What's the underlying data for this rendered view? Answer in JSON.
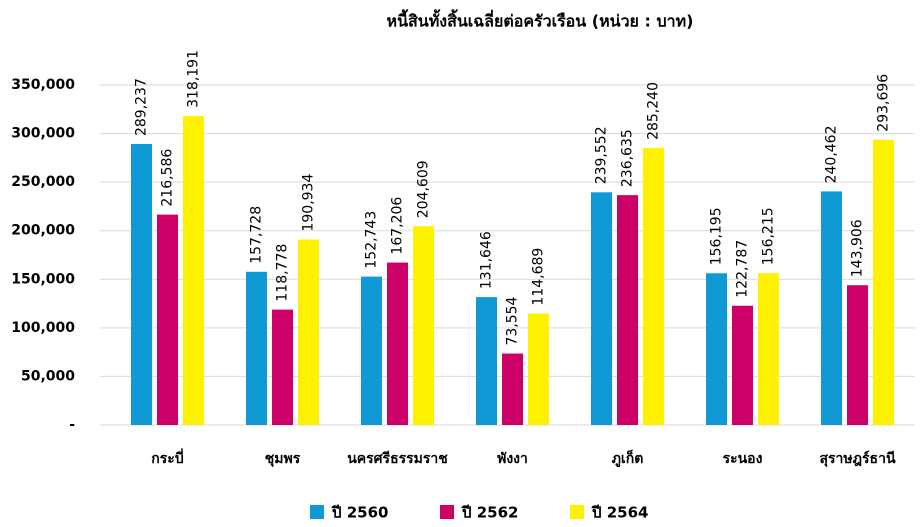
{
  "chart_data": {
    "type": "bar",
    "title": "หนี้สินทั้งสิ้นเฉลี่ยต่อครัวเรือน  (หน่วย : บาท)",
    "categories": [
      "กระบี่",
      "ชุมพร",
      "นครศรีธรรมราช",
      "พังงา",
      "ภูเก็ต",
      "ระนอง",
      "สุราษฎร์ธานี"
    ],
    "series": [
      {
        "name": "ปี 2560",
        "color": "#0f9ad6",
        "values": [
          289237,
          157728,
          152743,
          131646,
          239552,
          156195,
          240462
        ],
        "value_labels": [
          "289,237",
          "157,728",
          "152,743",
          "131,646",
          "239,552",
          "156,195",
          "240,462"
        ]
      },
      {
        "name": "ปี 2562",
        "color": "#cc0066",
        "values": [
          216586,
          118778,
          167206,
          73554,
          236635,
          122787,
          143906
        ],
        "value_labels": [
          "216,586",
          "118,778",
          "167,206",
          "73,554",
          "236,635",
          "122,787",
          "143,906"
        ]
      },
      {
        "name": "ปี 2564",
        "color": "#fff200",
        "values": [
          318191,
          190934,
          204609,
          114689,
          285240,
          156215,
          293696
        ],
        "value_labels": [
          "318,191",
          "190,934",
          "204,609",
          "114,689",
          "285,240",
          "156,215",
          "293,696"
        ]
      }
    ],
    "ylim": [
      0,
      350000
    ],
    "yticks": [
      {
        "value": 0,
        "label": "-"
      },
      {
        "value": 50000,
        "label": "50,000"
      },
      {
        "value": 100000,
        "label": "100,000"
      },
      {
        "value": 150000,
        "label": "150,000"
      },
      {
        "value": 200000,
        "label": "200,000"
      },
      {
        "value": 250000,
        "label": "250,000"
      },
      {
        "value": 300000,
        "label": "300,000"
      },
      {
        "value": 350000,
        "label": "350,000"
      }
    ],
    "grid": true,
    "legend": "bottom"
  }
}
